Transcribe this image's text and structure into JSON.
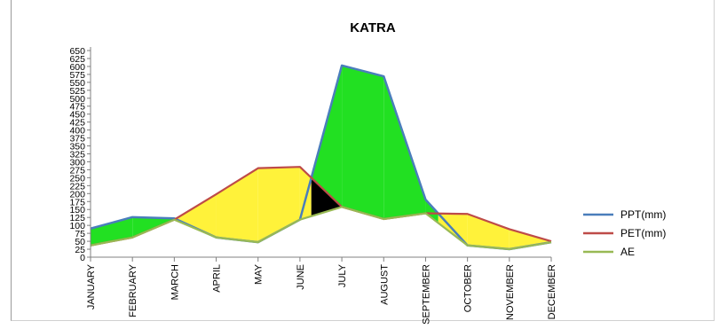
{
  "chart_data": {
    "type": "area",
    "title": "KATRA",
    "xlabel": "",
    "ylabel": "",
    "categories": [
      "JANUARY",
      "FEBRUARY",
      "MARCH",
      "APRIL",
      "MAY",
      "JUNE",
      "JULY",
      "AUGUST",
      "SEPTEMBER",
      "OCTOBER",
      "NOVEMBER",
      "DECEMBER"
    ],
    "ylim": [
      0,
      650
    ],
    "yticks": [
      "0",
      "25",
      "50",
      "75",
      "100",
      "125",
      "150",
      "175",
      "200",
      "225",
      "250",
      "275",
      "300",
      "325",
      "350",
      "375",
      "400",
      "425",
      "450",
      "475",
      "500",
      "525",
      "550",
      "575",
      "600",
      "625",
      "650"
    ],
    "series": [
      {
        "name": "PPT(mm)",
        "color": "#4a7ebb",
        "values": [
          90,
          126,
          122,
          62,
          47,
          118,
          603,
          569,
          181,
          37,
          25,
          47
        ]
      },
      {
        "name": "PET(mm)",
        "color": "#be4b48",
        "values": [
          37,
          62,
          118,
          198,
          280,
          284,
          158,
          120,
          138,
          136,
          88,
          50
        ]
      },
      {
        "name": "AE",
        "color": "#98b954",
        "values": [
          37,
          62,
          118,
          62,
          47,
          118,
          158,
          120,
          138,
          37,
          25,
          47
        ]
      }
    ],
    "fill_colors": {
      "surplus": "#22e022",
      "deficit": "#fff23a",
      "utilization": "#000000"
    },
    "grid": false,
    "legend": "right"
  }
}
